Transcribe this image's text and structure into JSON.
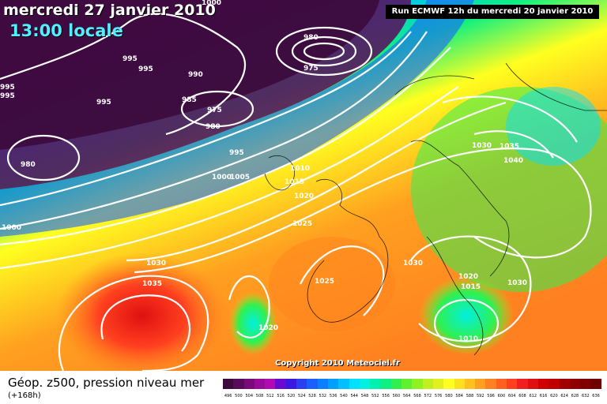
{
  "header": {
    "date": "mercredi 27 janvier 2010",
    "time": "13:00 locale",
    "run": "Run ECMWF 12h du mercredi 20 janvier 2010"
  },
  "footer": {
    "variable": "Géop. z500, pression niveau mer",
    "lead": "(+168h)",
    "copyright": "Copyright 2010 Meteociel.fr"
  },
  "legend": {
    "colors": [
      "#3c0a3c",
      "#5a0a5a",
      "#7a0a7a",
      "#9a0a9a",
      "#b00ab0",
      "#6a0ad0",
      "#3a18e0",
      "#2a40f0",
      "#1a60ff",
      "#0a80ff",
      "#00a0ff",
      "#00c0ff",
      "#00e0ff",
      "#00f0e0",
      "#00f0b0",
      "#10f080",
      "#30f050",
      "#60f030",
      "#90f020",
      "#c0f020",
      "#e0f020",
      "#ffff20",
      "#ffe020",
      "#ffc020",
      "#ffa020",
      "#ff8020",
      "#ff6020",
      "#ff4020",
      "#f02020",
      "#e01010",
      "#d00000",
      "#c00000",
      "#a00000",
      "#900000",
      "#800000",
      "#700000"
    ],
    "labels": [
      "496",
      "500",
      "504",
      "508",
      "512",
      "516",
      "520",
      "524",
      "528",
      "532",
      "536",
      "540",
      "544",
      "548",
      "552",
      "556",
      "560",
      "564",
      "568",
      "572",
      "576",
      "580",
      "584",
      "588",
      "592",
      "596",
      "600",
      "604",
      "608",
      "612",
      "616",
      "620",
      "624",
      "628",
      "632",
      "636"
    ]
  },
  "isobar_labels": [
    "1000",
    "995",
    "995",
    "995",
    "995",
    "995",
    "990",
    "985",
    "980",
    "975",
    "980",
    "975",
    "980",
    "995",
    "1000",
    "1005",
    "1010",
    "1015",
    "1020",
    "1025",
    "1025",
    "1020",
    "1030",
    "1035",
    "1030",
    "1030",
    "1035",
    "1040",
    "1030",
    "1020",
    "1015",
    "1030",
    "1010",
    "1000"
  ],
  "colors": {
    "low": "#3c0a3c",
    "mid": "#00e0ff",
    "high": "#ff4020"
  }
}
